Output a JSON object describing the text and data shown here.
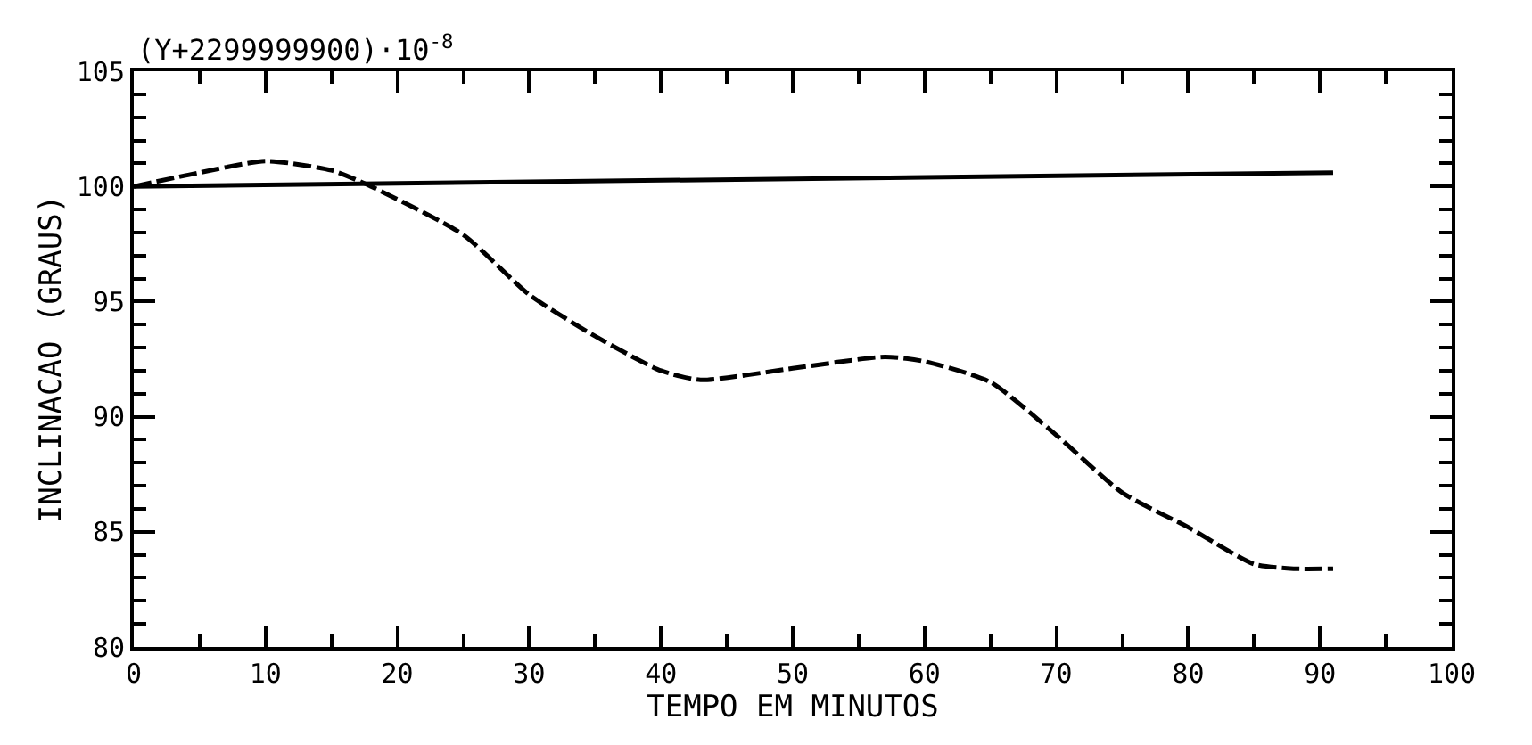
{
  "chart_data": {
    "type": "line",
    "xlabel": "TEMPO EM MINUTOS",
    "ylabel": "INCLINACAO (GRAUS)",
    "annotations": [
      "(Y+2299999900)·10$^{-8}$"
    ],
    "xlim": [
      0,
      100
    ],
    "xticks": [
      0,
      10,
      20,
      30,
      40,
      50,
      60,
      70,
      80,
      90,
      100
    ],
    "ylim": [
      80,
      105
    ],
    "yticks": [
      80,
      85,
      90,
      95,
      100,
      105
    ],
    "series": [
      {
        "color": "#000000",
        "line_style": "solid",
        "x": [
          0,
          91
        ],
        "values": [
          100,
          100.6
        ]
      },
      {
        "color": "#000000",
        "line_style": "dashed",
        "x": [
          0,
          5,
          10,
          15,
          18,
          25,
          30,
          35,
          40,
          43,
          50,
          57,
          60,
          65,
          70,
          75,
          80,
          85,
          88,
          91
        ],
        "values": [
          100,
          100.6,
          101.1,
          100.7,
          100,
          97.9,
          95.3,
          93.5,
          92.0,
          91.6,
          92.1,
          92.6,
          92.4,
          91.5,
          89.2,
          86.7,
          85.2,
          83.6,
          83.4,
          83.4
        ]
      }
    ]
  }
}
